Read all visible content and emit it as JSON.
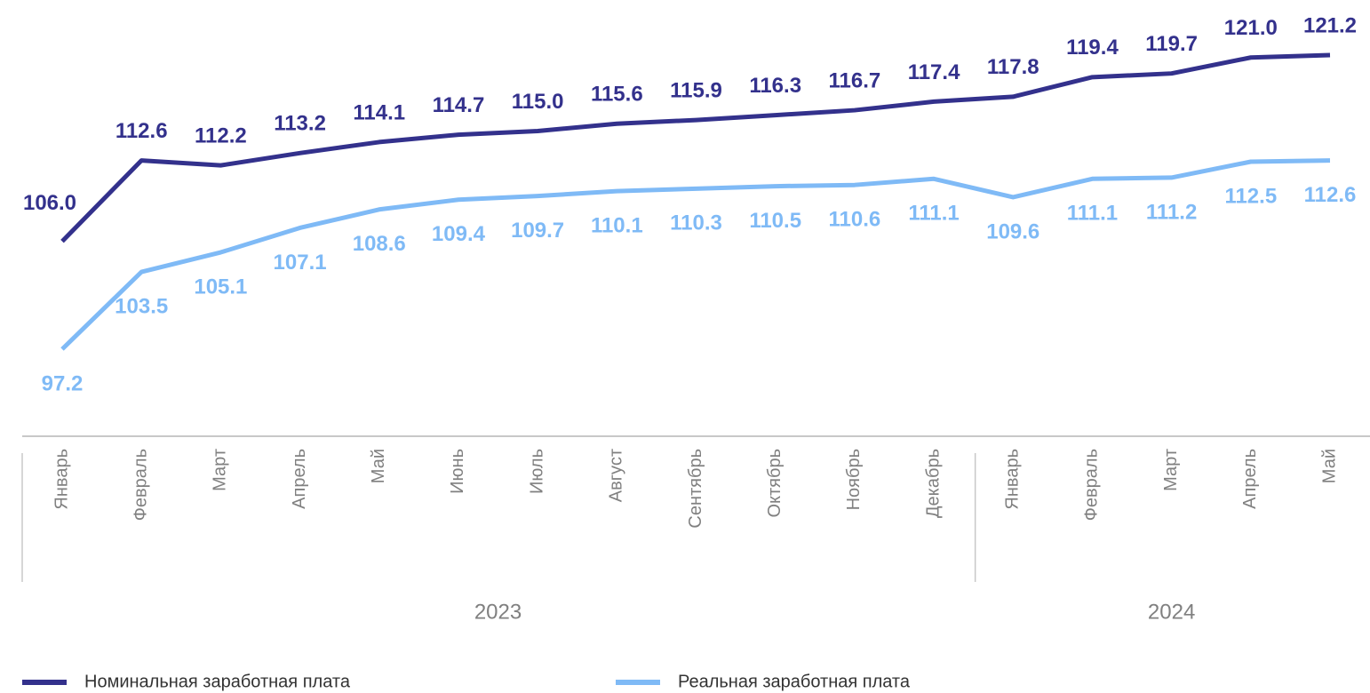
{
  "chart_data": {
    "type": "line",
    "category_groups": [
      {
        "label": "2023",
        "categories": [
          "Январь",
          "Февраль",
          "Март",
          "Апрель",
          "Май",
          "Июнь",
          "Июль",
          "Август",
          "Сентябрь",
          "Октябрь",
          "Ноябрь",
          "Декабрь"
        ]
      },
      {
        "label": "2024",
        "categories": [
          "Январь",
          "Февраль",
          "Март",
          "Апрель",
          "Май"
        ]
      }
    ],
    "series": [
      {
        "name": "Номинальная заработная плата",
        "color": "#33318c",
        "values": [
          106.0,
          112.6,
          112.2,
          113.2,
          114.1,
          114.7,
          115.0,
          115.6,
          115.9,
          116.3,
          116.7,
          117.4,
          117.8,
          119.4,
          119.7,
          121.0,
          121.2
        ],
        "value_labels": [
          "106.0",
          "112.6",
          "112.2",
          "113.2",
          "114.1",
          "114.7",
          "115.0",
          "115.6",
          "115.9",
          "116.3",
          "116.7",
          "117.4",
          "117.8",
          "119.4",
          "119.7",
          "121.0",
          "121.2"
        ]
      },
      {
        "name": "Реальная заработная плата",
        "color": "#7fbaf6",
        "values": [
          97.2,
          103.5,
          105.1,
          107.1,
          108.6,
          109.4,
          109.7,
          110.1,
          110.3,
          110.5,
          110.6,
          111.1,
          109.6,
          111.1,
          111.2,
          112.5,
          112.6
        ],
        "value_labels": [
          "97.2",
          "103.5",
          "105.1",
          "107.1",
          "108.6",
          "109.4",
          "109.7",
          "110.1",
          "110.3",
          "110.5",
          "110.6",
          "111.1",
          "109.6",
          "111.1",
          "111.2",
          "112.5",
          "112.6"
        ]
      }
    ],
    "legend": "bottom"
  }
}
